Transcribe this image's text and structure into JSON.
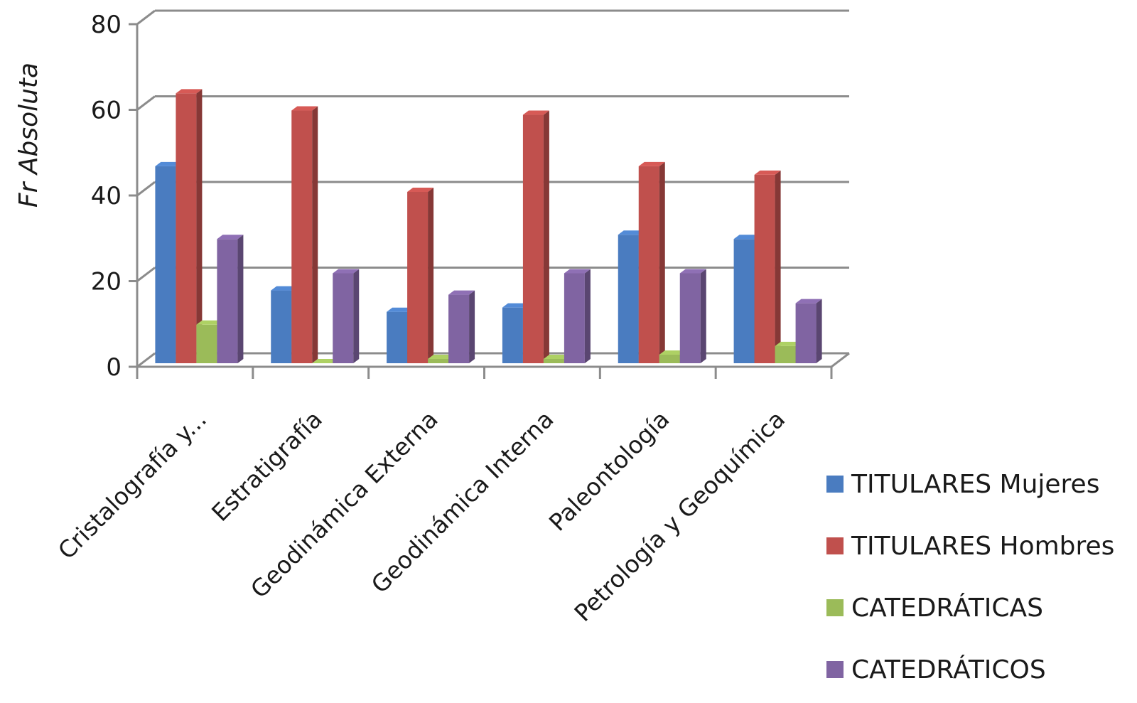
{
  "chart_data": {
    "type": "bar",
    "style": "3d-clustered-column",
    "title": "",
    "xlabel": "",
    "ylabel": "Fr Absoluta",
    "ylim": [
      0,
      80
    ],
    "yticks": [
      0,
      20,
      40,
      60,
      80
    ],
    "grid": true,
    "legend_position": "bottom-right",
    "categories": [
      "Cristalografía y...",
      "Estratigrafía",
      "Geodinámica Externa",
      "Geodinámica Interna",
      "Paleontología",
      "Petrología y Geoquímica"
    ],
    "series": [
      {
        "name": "TITULARES Mujeres",
        "color": "#4a7cc0",
        "values": [
          46,
          17,
          12,
          13,
          30,
          29
        ]
      },
      {
        "name": "TITULARES Hombres",
        "color": "#c0504d",
        "values": [
          63,
          59,
          40,
          58,
          46,
          44
        ]
      },
      {
        "name": "CATEDRÁTICAS",
        "color": "#9bbb59",
        "values": [
          9,
          0,
          1,
          1,
          2,
          4
        ]
      },
      {
        "name": "CATEDRÁTICOS",
        "color": "#8064a2",
        "values": [
          29,
          21,
          16,
          21,
          21,
          14
        ]
      }
    ]
  }
}
